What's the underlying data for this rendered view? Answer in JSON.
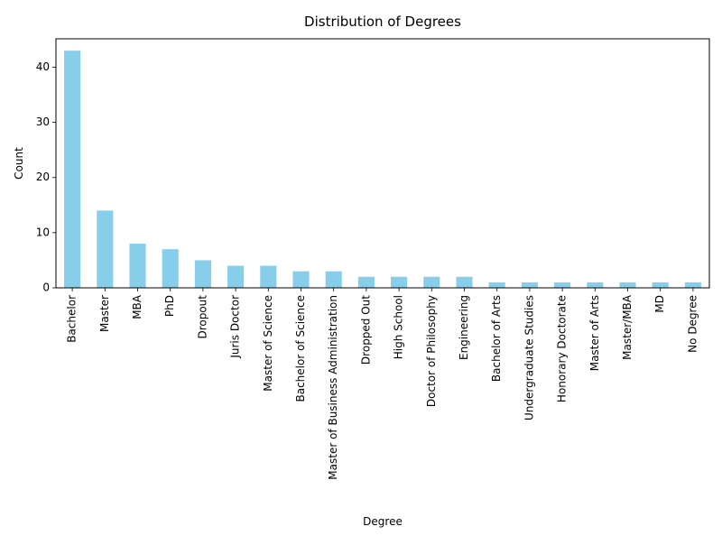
{
  "chart_data": {
    "type": "bar",
    "title": "Distribution of Degrees",
    "xlabel": "Degree",
    "ylabel": "Count",
    "categories": [
      "Bachelor",
      "Master",
      "MBA",
      "PhD",
      "Dropout",
      "Juris Doctor",
      "Master of Science",
      "Bachelor of Science",
      "Master of Business Administration",
      "Dropped Out",
      "High School",
      "Doctor of Philosophy",
      "Engineering",
      "Bachelor of Arts",
      "Undergraduate Studies",
      "Honorary Doctorate",
      "Master of Arts",
      "Master/MBA",
      "MD",
      "No Degree"
    ],
    "values": [
      43,
      14,
      8,
      7,
      5,
      4,
      4,
      3,
      3,
      2,
      2,
      2,
      2,
      1,
      1,
      1,
      1,
      1,
      1,
      1
    ],
    "ylim": [
      0,
      45.15
    ],
    "yticks": [
      "0",
      "10",
      "20",
      "30",
      "40"
    ],
    "bar_color": "#87ceeb",
    "grid": false,
    "legend": "none"
  }
}
